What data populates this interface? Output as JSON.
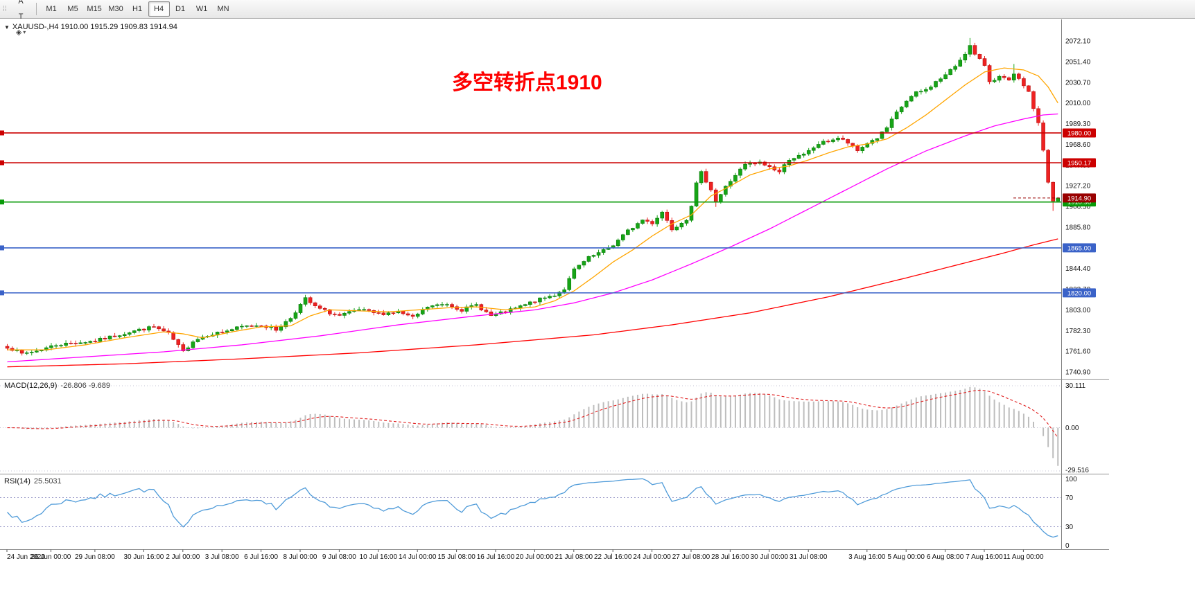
{
  "toolbar": {
    "handle_glyph": "⁞⁞",
    "icons": [
      {
        "name": "chart-window-icon",
        "glyph": "▦",
        "dropdown": false
      },
      {
        "name": "cursor-icon",
        "glyph": "A",
        "dropdown": false
      },
      {
        "name": "text-icon",
        "glyph": "T",
        "dropdown": false
      },
      {
        "name": "shapes-icon",
        "glyph": "◈",
        "dropdown": true
      }
    ],
    "timeframes": [
      "M1",
      "M5",
      "M15",
      "M30",
      "H1",
      "H4",
      "D1",
      "W1",
      "MN"
    ],
    "active_timeframe": "H4"
  },
  "chart": {
    "header": {
      "dropdown_glyph": "▼",
      "text": "XAUUSD-,H4  1910.00 1915.29 1909.83 1914.94"
    },
    "annotation": {
      "text": "多空转折点1910",
      "color": "#fe0000"
    }
  },
  "colors": {
    "up": "#16a516",
    "up_border": "#0d7a0d",
    "down": "#ee2222",
    "down_border": "#b81111",
    "ma_fast": "#ffa500",
    "ma_mid": "#ff00ff",
    "ma_slow": "#ff0000",
    "res_line": "#cc0000",
    "sup_line": "#3a62c8",
    "pivot_line": "#089a08",
    "bid": "#990000",
    "macd_hist": "#bdbdbd",
    "macd_signal": "#e02020",
    "rsi_line": "#4f9bd9",
    "axis_text": "#111111"
  },
  "chart_data": {
    "type": "candlestick",
    "symbol": "XAUUSD-",
    "timeframe": "H4",
    "ohlc_display": {
      "open": "1910.00",
      "high": "1915.29",
      "low": "1909.83",
      "close": "1914.94"
    },
    "bars": 216,
    "seed": 7,
    "noise": 1.5,
    "last_close": 1914.94,
    "price_range": {
      "max": 2093.6,
      "min": 1734.0
    },
    "close_anchors": [
      [
        0,
        1766
      ],
      [
        3,
        1759
      ],
      [
        6,
        1762
      ],
      [
        10,
        1768
      ],
      [
        14,
        1770
      ],
      [
        18,
        1772
      ],
      [
        22,
        1777
      ],
      [
        26,
        1782
      ],
      [
        30,
        1786
      ],
      [
        33,
        1779
      ],
      [
        36,
        1761
      ],
      [
        38,
        1772
      ],
      [
        41,
        1778
      ],
      [
        44,
        1781
      ],
      [
        48,
        1786
      ],
      [
        52,
        1788
      ],
      [
        55,
        1783
      ],
      [
        58,
        1795
      ],
      [
        60,
        1808
      ],
      [
        61,
        1814
      ],
      [
        63,
        1806
      ],
      [
        66,
        1800
      ],
      [
        68,
        1797
      ],
      [
        72,
        1803
      ],
      [
        76,
        1799
      ],
      [
        80,
        1801
      ],
      [
        83,
        1795
      ],
      [
        86,
        1806
      ],
      [
        90,
        1809
      ],
      [
        93,
        1803
      ],
      [
        96,
        1808
      ],
      [
        99,
        1797
      ],
      [
        102,
        1801
      ],
      [
        106,
        1808
      ],
      [
        108,
        1812
      ],
      [
        112,
        1818
      ],
      [
        114,
        1824
      ],
      [
        116,
        1843
      ],
      [
        119,
        1855
      ],
      [
        122,
        1862
      ],
      [
        124,
        1868
      ],
      [
        127,
        1882
      ],
      [
        130,
        1893
      ],
      [
        132,
        1890
      ],
      [
        134,
        1901
      ],
      [
        136,
        1884
      ],
      [
        139,
        1894
      ],
      [
        140,
        1908
      ],
      [
        141,
        1929
      ],
      [
        142,
        1940
      ],
      [
        144,
        1924
      ],
      [
        145,
        1911
      ],
      [
        147,
        1926
      ],
      [
        149,
        1938
      ],
      [
        151,
        1948
      ],
      [
        154,
        1950
      ],
      [
        156,
        1946
      ],
      [
        158,
        1941
      ],
      [
        160,
        1954
      ],
      [
        163,
        1958
      ],
      [
        166,
        1969
      ],
      [
        168,
        1972
      ],
      [
        170,
        1975
      ],
      [
        172,
        1970
      ],
      [
        174,
        1962
      ],
      [
        176,
        1970
      ],
      [
        178,
        1975
      ],
      [
        180,
        1985
      ],
      [
        182,
        2000
      ],
      [
        184,
        2012
      ],
      [
        186,
        2020
      ],
      [
        188,
        2023
      ],
      [
        190,
        2031
      ],
      [
        192,
        2038
      ],
      [
        194,
        2047
      ],
      [
        196,
        2060
      ],
      [
        197,
        2067
      ],
      [
        198,
        2058
      ],
      [
        200,
        2048
      ],
      [
        201,
        2032
      ],
      [
        203,
        2036
      ],
      [
        205,
        2032
      ],
      [
        206,
        2038
      ],
      [
        208,
        2028
      ],
      [
        209,
        2020
      ],
      [
        210,
        2005
      ],
      [
        211,
        1990
      ],
      [
        212,
        1963
      ],
      [
        213,
        1930
      ],
      [
        214,
        1911
      ],
      [
        215,
        1915
      ]
    ],
    "wick_overrides": {
      "61": {
        "high": 1818
      },
      "145": {
        "low": 1906
      },
      "197": {
        "high": 2075
      },
      "206": {
        "high": 2049
      },
      "214": {
        "low": 1902
      }
    },
    "moving_averages": [
      {
        "name": "ma-fast-orange",
        "color_key": "ma_fast",
        "anchors": [
          [
            0,
            1763
          ],
          [
            8,
            1763
          ],
          [
            16,
            1768
          ],
          [
            24,
            1775
          ],
          [
            32,
            1781
          ],
          [
            36,
            1779
          ],
          [
            40,
            1775
          ],
          [
            46,
            1781
          ],
          [
            52,
            1786
          ],
          [
            58,
            1787
          ],
          [
            62,
            1797
          ],
          [
            66,
            1803
          ],
          [
            72,
            1802
          ],
          [
            78,
            1801
          ],
          [
            84,
            1803
          ],
          [
            90,
            1805
          ],
          [
            96,
            1806
          ],
          [
            102,
            1803
          ],
          [
            108,
            1806
          ],
          [
            112,
            1812
          ],
          [
            116,
            1822
          ],
          [
            120,
            1836
          ],
          [
            124,
            1851
          ],
          [
            128,
            1863
          ],
          [
            132,
            1877
          ],
          [
            136,
            1889
          ],
          [
            140,
            1898
          ],
          [
            144,
            1917
          ],
          [
            148,
            1927
          ],
          [
            152,
            1938
          ],
          [
            156,
            1944
          ],
          [
            160,
            1947
          ],
          [
            164,
            1953
          ],
          [
            168,
            1960
          ],
          [
            172,
            1966
          ],
          [
            176,
            1969
          ],
          [
            180,
            1974
          ],
          [
            184,
            1985
          ],
          [
            188,
            1998
          ],
          [
            192,
            2013
          ],
          [
            196,
            2028
          ],
          [
            200,
            2041
          ],
          [
            204,
            2045
          ],
          [
            208,
            2043
          ],
          [
            211,
            2037
          ],
          [
            213,
            2026
          ],
          [
            215,
            2010
          ]
        ]
      },
      {
        "name": "ma-mid-magenta",
        "color_key": "ma_mid",
        "anchors": [
          [
            0,
            1751
          ],
          [
            16,
            1756
          ],
          [
            32,
            1761
          ],
          [
            48,
            1768
          ],
          [
            64,
            1777
          ],
          [
            80,
            1788
          ],
          [
            96,
            1797
          ],
          [
            108,
            1803
          ],
          [
            116,
            1810
          ],
          [
            124,
            1820
          ],
          [
            132,
            1833
          ],
          [
            140,
            1849
          ],
          [
            148,
            1866
          ],
          [
            156,
            1884
          ],
          [
            164,
            1904
          ],
          [
            172,
            1924
          ],
          [
            180,
            1944
          ],
          [
            188,
            1962
          ],
          [
            196,
            1977
          ],
          [
            202,
            1987
          ],
          [
            208,
            1994
          ],
          [
            212,
            1998
          ],
          [
            215,
            1999
          ]
        ]
      },
      {
        "name": "ma-slow-red",
        "color_key": "ma_slow",
        "anchors": [
          [
            0,
            1746
          ],
          [
            24,
            1749
          ],
          [
            48,
            1754
          ],
          [
            72,
            1760
          ],
          [
            96,
            1768
          ],
          [
            120,
            1778
          ],
          [
            136,
            1788
          ],
          [
            152,
            1800
          ],
          [
            168,
            1816
          ],
          [
            184,
            1835
          ],
          [
            196,
            1850
          ],
          [
            204,
            1860
          ],
          [
            210,
            1868
          ],
          [
            215,
            1874
          ]
        ]
      }
    ],
    "hlines": [
      {
        "price": 1980.0,
        "color_key": "res_line",
        "tag": "1980.00"
      },
      {
        "price": 1950.17,
        "color_key": "res_line",
        "tag": "1950.17"
      },
      {
        "price": 1910.9,
        "color_key": "pivot_line",
        "tag": "1910.90"
      },
      {
        "price": 1865.0,
        "color_key": "sup_line",
        "tag": "1865.00"
      },
      {
        "price": 1820.0,
        "color_key": "sup_line",
        "tag": "1820.00"
      }
    ],
    "bid_marker": {
      "price": 1914.9,
      "tag": "1914.90",
      "color_key": "bid"
    },
    "price_axis_labels": [
      "2072.10",
      "2051.40",
      "2030.70",
      "2010.00",
      "1989.30",
      "1968.60",
      "1947.90",
      "1927.20",
      "1906.50",
      "1885.80",
      "1865.10",
      "1844.40",
      "1823.70",
      "1803.00",
      "1782.30",
      "1761.60",
      "1740.90"
    ],
    "date_axis": [
      {
        "bar": 0,
        "label": "24 Jun 2020"
      },
      {
        "bar": 9,
        "label": "26 Jun 00:00"
      },
      {
        "bar": 18,
        "label": "29 Jun 08:00"
      },
      {
        "bar": 28,
        "label": "30 Jun 16:00"
      },
      {
        "bar": 36,
        "label": "2 Jul 00:00"
      },
      {
        "bar": 44,
        "label": "3 Jul 08:00"
      },
      {
        "bar": 52,
        "label": "6 Jul 16:00"
      },
      {
        "bar": 60,
        "label": "8 Jul 00:00"
      },
      {
        "bar": 68,
        "label": "9 Jul 08:00"
      },
      {
        "bar": 76,
        "label": "10 Jul 16:00"
      },
      {
        "bar": 84,
        "label": "14 Jul 00:00"
      },
      {
        "bar": 92,
        "label": "15 Jul 08:00"
      },
      {
        "bar": 100,
        "label": "16 Jul 16:00"
      },
      {
        "bar": 108,
        "label": "20 Jul 00:00"
      },
      {
        "bar": 116,
        "label": "21 Jul 08:00"
      },
      {
        "bar": 124,
        "label": "22 Jul 16:00"
      },
      {
        "bar": 132,
        "label": "24 Jul 00:00"
      },
      {
        "bar": 140,
        "label": "27 Jul 08:00"
      },
      {
        "bar": 148,
        "label": "28 Jul 16:00"
      },
      {
        "bar": 156,
        "label": "30 Jul 00:00"
      },
      {
        "bar": 164,
        "label": "31 Jul 08:00"
      },
      {
        "bar": 176,
        "label": "3 Aug 16:00"
      },
      {
        "bar": 184,
        "label": "5 Aug 00:00"
      },
      {
        "bar": 192,
        "label": "6 Aug 08:00"
      },
      {
        "bar": 200,
        "label": "7 Aug 16:00"
      },
      {
        "bar": 208,
        "label": "11 Aug 00:00"
      }
    ],
    "macd": {
      "label": "MACD(12,26,9)",
      "values": "-26.806 -9.689",
      "axis_labels": [
        "30.111",
        "0.00",
        "-29.516"
      ],
      "params": [
        12,
        26,
        9
      ]
    },
    "rsi": {
      "label": "RSI(14)",
      "value": "25.5031",
      "axis_labels": [
        "100",
        "70",
        "30",
        "0"
      ],
      "levels": [
        70,
        30
      ],
      "period": 14
    }
  }
}
